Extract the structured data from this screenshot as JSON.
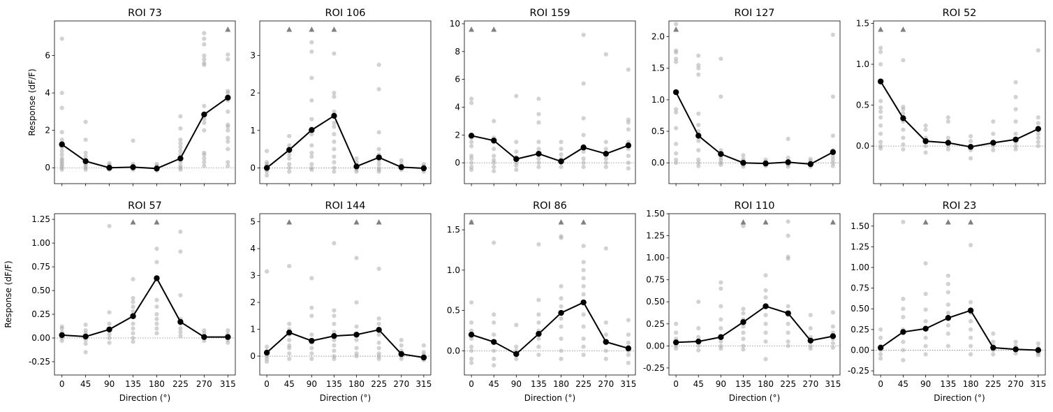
{
  "figure": {
    "xlabel": "Direction (°)",
    "ylabel": "Response (dF/F)",
    "colors": {
      "mean_line": "#000000",
      "trial_points": "#a6a6a6",
      "outlier_marker": "#808080",
      "zero_line": "#808080"
    }
  },
  "chart_data": [
    {
      "type": "scatter",
      "title": "ROI 73",
      "x": [
        0,
        45,
        90,
        135,
        180,
        225,
        270,
        315
      ],
      "xticks": [
        "0",
        "45",
        "90",
        "135",
        "180",
        "225",
        "270",
        "315"
      ],
      "ylim": [
        -0.85,
        7.85
      ],
      "yticks": [
        0,
        2,
        4,
        6
      ],
      "mean": [
        1.25,
        0.35,
        0.0,
        0.03,
        -0.04,
        0.5,
        2.85,
        3.75
      ],
      "trials": [
        [
          6.9,
          4.0,
          3.2,
          1.9,
          1.5,
          1.3,
          1.1,
          0.9,
          0.7,
          0.5,
          0.4,
          0.3,
          0.2,
          0.1,
          0.0,
          -0.1
        ],
        [
          2.45,
          1.5,
          0.8,
          0.6,
          0.4,
          0.3,
          0.2,
          0.1,
          0.0,
          -0.1
        ],
        [
          0.25,
          0.15,
          0.1,
          0.0,
          -0.05,
          -0.1
        ],
        [
          1.45,
          0.2,
          0.1,
          0.05,
          0.0,
          -0.05,
          -0.1
        ],
        [
          0.2,
          0.1,
          0.05,
          0.0,
          -0.1,
          -0.15
        ],
        [
          2.75,
          2.1,
          1.5,
          1.3,
          1.1,
          0.9,
          0.7,
          0.5,
          0.3,
          0.1,
          0.0,
          -0.1
        ],
        [
          7.2,
          6.9,
          6.6,
          6.0,
          5.8,
          5.6,
          5.5,
          3.3,
          2.6,
          2.4,
          2.0,
          0.8,
          0.7,
          0.5,
          0.3,
          0.1
        ],
        [
          6.05,
          5.8,
          4.1,
          4.0,
          3.6,
          3.0,
          2.3,
          2.2,
          2.0,
          1.6,
          1.4,
          1.0,
          0.3,
          0.1
        ]
      ],
      "outliers": [
        315
      ],
      "show_ylabel": true,
      "show_xlabel": false
    },
    {
      "type": "scatter",
      "title": "ROI 106",
      "x": [
        0,
        45,
        90,
        135,
        180,
        225,
        270,
        315
      ],
      "xticks": [
        "0",
        "45",
        "90",
        "135",
        "180",
        "225",
        "270",
        "315"
      ],
      "ylim": [
        -0.42,
        3.92
      ],
      "yticks": [
        0,
        1,
        2,
        3
      ],
      "mean": [
        0.0,
        0.48,
        1.01,
        1.39,
        0.04,
        0.28,
        0.02,
        -0.01
      ],
      "trials": [
        [
          0.45,
          0.15,
          0.1,
          0.05,
          0.0,
          -0.05,
          -0.1,
          -0.2
        ],
        [
          0.85,
          0.6,
          0.5,
          0.45,
          0.35,
          0.25,
          0.1,
          0.0,
          -0.1
        ],
        [
          3.35,
          3.1,
          2.4,
          1.8,
          1.3,
          1.05,
          1.0,
          0.9,
          0.6,
          0.4,
          0.3,
          0.1,
          0.0,
          -0.05
        ],
        [
          3.05,
          2.0,
          1.9,
          1.5,
          1.4,
          1.2,
          1.1,
          0.9,
          0.7,
          0.5,
          0.3,
          0.15,
          0.0,
          -0.1
        ],
        [
          0.25,
          0.15,
          0.05,
          0.0,
          -0.05,
          -0.1
        ],
        [
          2.75,
          2.1,
          0.95,
          0.5,
          0.35,
          0.2,
          0.1,
          0.0,
          -0.05,
          -0.1
        ],
        [
          0.2,
          0.1,
          0.05,
          0.0,
          -0.05
        ],
        [
          0.1,
          0.05,
          0.0,
          -0.05,
          -0.1
        ]
      ],
      "outliers": [
        45,
        90,
        135
      ],
      "show_ylabel": false,
      "show_xlabel": false
    },
    {
      "type": "scatter",
      "title": "ROI 159",
      "x": [
        0,
        45,
        90,
        135,
        180,
        225,
        270,
        315
      ],
      "xticks": [
        "0",
        "45",
        "90",
        "135",
        "180",
        "225",
        "270",
        "315"
      ],
      "ylim": [
        -1.5,
        10.2
      ],
      "yticks": [
        0,
        2,
        4,
        6,
        8,
        10
      ],
      "mean": [
        1.95,
        1.6,
        0.27,
        0.65,
        0.1,
        1.1,
        0.65,
        1.25
      ],
      "trials": [
        [
          4.6,
          4.3,
          2.0,
          1.8,
          1.5,
          1.2,
          0.5,
          0.3,
          0.0,
          -0.3,
          -0.5
        ],
        [
          3.0,
          1.8,
          1.5,
          1.0,
          0.5,
          0.2,
          0.0,
          -0.3,
          -0.6
        ],
        [
          4.8,
          1.5,
          0.8,
          0.4,
          0.2,
          0.0,
          -0.2,
          -0.5
        ],
        [
          4.6,
          3.5,
          2.9,
          1.5,
          1.0,
          0.6,
          0.3,
          0.0,
          -0.3
        ],
        [
          1.5,
          1.0,
          0.6,
          0.3,
          0.0,
          -0.3
        ],
        [
          9.2,
          5.7,
          3.2,
          2.0,
          1.2,
          0.8,
          0.3,
          0.0,
          -0.3
        ],
        [
          7.8,
          1.5,
          1.0,
          0.6,
          0.3,
          0.0,
          -0.3
        ],
        [
          6.7,
          3.1,
          2.9,
          2.4,
          1.5,
          1.0,
          0.5,
          0.0,
          -0.4
        ]
      ],
      "outliers": [
        0,
        45
      ],
      "show_ylabel": false,
      "show_xlabel": false
    },
    {
      "type": "scatter",
      "title": "ROI 127",
      "x": [
        0,
        45,
        90,
        135,
        180,
        225,
        270,
        315
      ],
      "xticks": [
        "0",
        "45",
        "90",
        "135",
        "180",
        "225",
        "270",
        "315"
      ],
      "ylim": [
        -0.33,
        2.25
      ],
      "yticks": [
        0.0,
        0.5,
        1.0,
        1.5,
        2.0
      ],
      "mean": [
        1.12,
        0.43,
        0.14,
        0.0,
        -0.01,
        0.01,
        -0.02,
        0.17
      ],
      "trials": [
        [
          2.2,
          1.78,
          1.75,
          1.65,
          1.6,
          0.85,
          0.8,
          0.55,
          0.3,
          0.15,
          0.05,
          0.0
        ],
        [
          1.7,
          1.55,
          1.5,
          1.4,
          0.78,
          0.6,
          0.5,
          0.35,
          0.2,
          0.05,
          0.0,
          -0.05
        ],
        [
          1.65,
          1.05,
          0.2,
          0.12,
          0.08,
          0.04,
          0.0,
          -0.03
        ],
        [
          0.12,
          0.06,
          0.03,
          0.0,
          -0.03,
          -0.06
        ],
        [
          0.05,
          0.02,
          0.0,
          -0.03,
          -0.05
        ],
        [
          0.38,
          0.08,
          0.03,
          0.0,
          -0.03,
          -0.06
        ],
        [
          0.06,
          0.03,
          0.0,
          -0.03,
          -0.06
        ],
        [
          2.03,
          1.05,
          0.43,
          0.2,
          0.1,
          0.05,
          0.0,
          -0.05
        ]
      ],
      "outliers": [
        0
      ],
      "show_ylabel": false,
      "show_xlabel": false
    },
    {
      "type": "scatter",
      "title": "ROI 52",
      "x": [
        0,
        45,
        90,
        135,
        180,
        225,
        270,
        315
      ],
      "xticks": [
        "0",
        "45",
        "90",
        "135",
        "180",
        "225",
        "270",
        "315"
      ],
      "ylim": [
        -0.46,
        1.53
      ],
      "yticks": [
        0.0,
        0.5,
        1.0,
        1.5
      ],
      "mean": [
        0.79,
        0.34,
        0.06,
        0.04,
        -0.01,
        0.04,
        0.08,
        0.21
      ],
      "trials": [
        [
          1.2,
          1.15,
          1.0,
          0.55,
          0.47,
          0.42,
          0.35,
          0.25,
          0.15,
          0.05,
          0.0,
          -0.03
        ],
        [
          1.05,
          0.48,
          0.45,
          0.4,
          0.3,
          0.2,
          0.1,
          0.02,
          -0.04
        ],
        [
          0.25,
          0.2,
          0.1,
          0.05,
          0.0,
          -0.08
        ],
        [
          0.35,
          0.3,
          0.1,
          0.05,
          0.0,
          -0.04
        ],
        [
          0.12,
          0.06,
          0.0,
          -0.05,
          -0.15
        ],
        [
          0.3,
          0.15,
          0.05,
          0.0,
          -0.05
        ],
        [
          0.78,
          0.6,
          0.45,
          0.3,
          0.15,
          0.05,
          0.0,
          -0.04
        ],
        [
          1.17,
          0.35,
          0.28,
          0.2,
          0.15,
          0.1,
          0.05,
          0.0
        ]
      ],
      "outliers": [
        0,
        45
      ],
      "show_ylabel": false,
      "show_xlabel": false
    },
    {
      "type": "scatter",
      "title": "ROI 57",
      "x": [
        0,
        45,
        90,
        135,
        180,
        225,
        270,
        315
      ],
      "xticks": [
        "0",
        "45",
        "90",
        "135",
        "180",
        "225",
        "270",
        "315"
      ],
      "ylim": [
        -0.39,
        1.31
      ],
      "yticks": [
        -0.25,
        0.0,
        0.25,
        0.5,
        0.75,
        1.0,
        1.25
      ],
      "mean": [
        0.03,
        0.015,
        0.09,
        0.23,
        0.63,
        0.17,
        0.01,
        0.01
      ],
      "trials": [
        [
          0.12,
          0.1,
          0.06,
          0.03,
          0.0,
          -0.03
        ],
        [
          0.14,
          0.08,
          0.05,
          0.02,
          -0.02,
          -0.06,
          -0.15
        ],
        [
          1.18,
          0.27,
          0.15,
          0.08,
          0.04,
          0.0,
          -0.05
        ],
        [
          0.62,
          0.42,
          0.38,
          0.33,
          0.28,
          0.22,
          0.15,
          0.1,
          0.05,
          0.0,
          -0.04
        ],
        [
          0.94,
          0.8,
          0.62,
          0.4,
          0.33,
          0.25,
          0.2,
          0.15,
          0.1,
          0.05
        ],
        [
          1.12,
          0.91,
          0.45,
          0.2,
          0.15,
          0.1,
          0.06,
          0.02
        ],
        [
          0.08,
          0.05,
          0.02,
          0.0,
          -0.03
        ],
        [
          0.08,
          0.04,
          0.01,
          -0.02,
          -0.05
        ]
      ],
      "outliers": [
        135,
        180
      ],
      "show_ylabel": true,
      "show_xlabel": true
    },
    {
      "type": "scatter",
      "title": "ROI 144",
      "x": [
        0,
        45,
        90,
        135,
        180,
        225,
        270,
        315
      ],
      "xticks": [
        "0",
        "45",
        "90",
        "135",
        "180",
        "225",
        "270",
        "315"
      ],
      "ylim": [
        -0.7,
        5.3
      ],
      "yticks": [
        0,
        1,
        2,
        3,
        4,
        5
      ],
      "mean": [
        0.13,
        0.88,
        0.57,
        0.75,
        0.8,
        0.98,
        0.08,
        -0.05
      ],
      "trials": [
        [
          3.15,
          0.35,
          0.2,
          0.1,
          0.0,
          -0.1,
          -0.2
        ],
        [
          3.35,
          1.2,
          1.0,
          0.8,
          0.6,
          0.4,
          0.3,
          0.1,
          -0.1
        ],
        [
          2.9,
          1.8,
          1.5,
          0.8,
          0.5,
          0.3,
          0.1,
          -0.1
        ],
        [
          4.2,
          1.7,
          1.5,
          1.2,
          0.9,
          0.6,
          0.4,
          0.2,
          0.0,
          -0.1
        ],
        [
          3.65,
          2.0,
          1.1,
          0.8,
          0.6,
          0.3,
          0.1,
          0.0
        ],
        [
          3.25,
          1.4,
          1.2,
          0.8,
          0.5,
          0.3,
          0.1,
          0.0,
          -0.1
        ],
        [
          0.6,
          0.4,
          0.2,
          0.1,
          0.0,
          -0.1
        ],
        [
          0.4,
          0.15,
          0.05,
          -0.05,
          -0.15
        ]
      ],
      "outliers": [
        45,
        180,
        225
      ],
      "show_ylabel": false,
      "show_xlabel": true
    },
    {
      "type": "scatter",
      "title": "ROI 86",
      "x": [
        0,
        45,
        90,
        135,
        180,
        225,
        270,
        315
      ],
      "xticks": [
        "0",
        "45",
        "90",
        "135",
        "180",
        "225",
        "270",
        "315"
      ],
      "ylim": [
        -0.3,
        1.7
      ],
      "yticks": [
        0.0,
        0.5,
        1.0,
        1.5
      ],
      "mean": [
        0.2,
        0.11,
        -0.04,
        0.21,
        0.47,
        0.6,
        0.11,
        0.03
      ],
      "trials": [
        [
          1.6,
          0.6,
          0.35,
          0.25,
          0.15,
          0.05,
          0.0,
          -0.1,
          -0.15
        ],
        [
          1.34,
          0.45,
          0.35,
          0.2,
          0.1,
          0.0,
          -0.1,
          -0.18
        ],
        [
          0.32,
          0.05,
          0.0,
          -0.05,
          -0.1
        ],
        [
          1.32,
          0.63,
          0.45,
          0.35,
          0.25,
          0.15,
          0.05,
          -0.05
        ],
        [
          1.42,
          1.4,
          0.8,
          0.65,
          0.55,
          0.4,
          0.3,
          0.15,
          0.0,
          -0.1
        ],
        [
          1.3,
          1.1,
          1.0,
          0.9,
          0.8,
          0.7,
          0.6,
          0.45,
          0.3,
          0.15,
          0.05,
          -0.05
        ],
        [
          1.27,
          0.35,
          0.2,
          0.1,
          0.0,
          -0.1
        ],
        [
          0.38,
          0.2,
          0.1,
          0.0,
          -0.05,
          -0.15
        ]
      ],
      "outliers": [
        0,
        180,
        225
      ],
      "show_ylabel": false,
      "show_xlabel": true
    },
    {
      "type": "scatter",
      "title": "ROI 110",
      "x": [
        0,
        45,
        90,
        135,
        180,
        225,
        270,
        315
      ],
      "xticks": [
        "0",
        "45",
        "90",
        "135",
        "180",
        "225",
        "270",
        "315"
      ],
      "ylim": [
        -0.33,
        1.5
      ],
      "yticks": [
        -0.25,
        0.0,
        0.25,
        0.5,
        0.75,
        1.0,
        1.25,
        1.5
      ],
      "mean": [
        0.04,
        0.05,
        0.1,
        0.27,
        0.45,
        0.37,
        0.06,
        0.11
      ],
      "trials": [
        [
          0.25,
          0.15,
          0.08,
          0.03,
          0.0,
          -0.03
        ],
        [
          0.5,
          0.2,
          0.1,
          0.05,
          0.0,
          -0.05
        ],
        [
          0.72,
          0.65,
          0.45,
          0.3,
          0.2,
          0.1,
          0.05,
          0.0,
          -0.03
        ],
        [
          1.36,
          0.42,
          0.37,
          0.3,
          0.22,
          0.15,
          0.08,
          0.0,
          -0.04
        ],
        [
          0.8,
          0.63,
          0.55,
          0.45,
          0.35,
          0.25,
          0.15,
          0.05,
          -0.15
        ],
        [
          1.41,
          1.25,
          1.01,
          0.99,
          0.45,
          0.35,
          0.25,
          0.15,
          0.05,
          0.0
        ],
        [
          0.35,
          0.2,
          0.1,
          0.05,
          0.0,
          -0.03
        ],
        [
          0.38,
          0.22,
          0.15,
          0.08,
          0.03,
          -0.02
        ]
      ],
      "outliers": [
        135,
        180,
        315
      ],
      "show_ylabel": false,
      "show_xlabel": true
    },
    {
      "type": "scatter",
      "title": "ROI 23",
      "x": [
        0,
        45,
        90,
        135,
        180,
        225,
        270,
        315
      ],
      "xticks": [
        "0",
        "45",
        "90",
        "135",
        "180",
        "225",
        "270",
        "315"
      ],
      "ylim": [
        -0.3,
        1.65
      ],
      "yticks": [
        -0.25,
        0.0,
        0.25,
        0.5,
        0.75,
        1.0,
        1.25,
        1.5
      ],
      "mean": [
        0.03,
        0.22,
        0.26,
        0.39,
        0.48,
        0.03,
        0.01,
        0.0
      ],
      "trials": [
        [
          0.25,
          0.15,
          0.05,
          0.0,
          -0.05,
          -0.1
        ],
        [
          1.55,
          0.62,
          0.5,
          0.4,
          0.25,
          0.1,
          0.0,
          -0.12
        ],
        [
          1.05,
          0.68,
          0.49,
          0.35,
          0.25,
          0.15,
          0.05,
          -0.05
        ],
        [
          0.9,
          0.8,
          0.7,
          0.55,
          0.45,
          0.3,
          0.2,
          0.05
        ],
        [
          1.27,
          0.58,
          0.45,
          0.35,
          0.25,
          0.15,
          0.05,
          -0.05
        ],
        [
          0.2,
          0.1,
          0.05,
          0.0,
          -0.05
        ],
        [
          0.1,
          0.05,
          0.0,
          -0.04
        ],
        [
          0.08,
          0.03,
          0.0,
          -0.04,
          -0.06
        ]
      ],
      "outliers": [
        90,
        135,
        180
      ],
      "show_ylabel": false,
      "show_xlabel": true
    }
  ]
}
